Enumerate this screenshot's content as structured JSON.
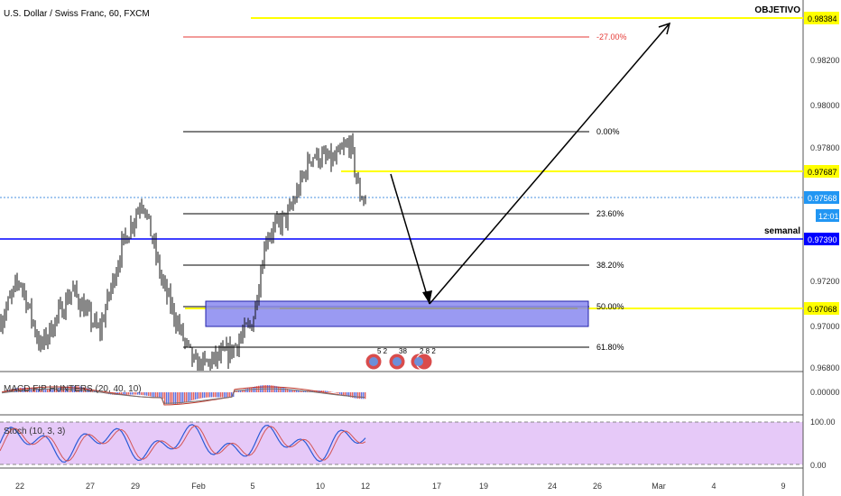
{
  "header": {
    "symbol_title": "U.S. Dollar / Swiss Franc, 60, FXCM"
  },
  "price_axis": {
    "ticks": [
      "0.98200",
      "0.98000",
      "0.97800",
      "0.97200",
      "0.97000",
      "0.96800"
    ],
    "current_price": "0.97568",
    "countdown": "12:01"
  },
  "levels": {
    "objetivo": {
      "label": "OBJETIVO",
      "price": "0.98384",
      "color": "#ffff00"
    },
    "resistance": {
      "price": "0.97687",
      "color": "#ffff00"
    },
    "semanal": {
      "label": "semanal",
      "price": "0.97390",
      "color": "#0000ff"
    },
    "target_zone": {
      "price": "0.97068",
      "color": "#ffff00"
    }
  },
  "fib_levels": [
    {
      "label": "-27.00%",
      "color": "#e53935"
    },
    {
      "label": "0.00%",
      "color": "#000000"
    },
    {
      "label": "23.60%",
      "color": "#000000"
    },
    {
      "label": "38.20%",
      "color": "#000000"
    },
    {
      "label": "50.00%",
      "color": "#000000"
    },
    {
      "label": "61.80%",
      "color": "#000000"
    }
  ],
  "events": [
    {
      "icon": "us-flag-icon",
      "count": "5 2"
    },
    {
      "icon": "us-flag-icon",
      "count": "38"
    },
    {
      "icon": "us-flag-icon",
      "count": "2 8 2"
    }
  ],
  "indicators": {
    "macd": {
      "label": "MACD FIP HUNTERS (20, 40, 10)",
      "axis": "0.00000"
    },
    "stoch": {
      "label": "Stoch (10, 3, 3)",
      "axis_top": "100.00",
      "axis_bottom": "0.00"
    }
  },
  "time_axis": {
    "labels": [
      "22",
      "27",
      "29",
      "Feb",
      "5",
      "10",
      "12",
      "17",
      "19",
      "24",
      "26",
      "Mar",
      "4",
      "9"
    ]
  },
  "chart_data": {
    "type": "line",
    "title": "U.S. Dollar / Swiss Franc, 60, FXCM",
    "xlabel": "",
    "ylabel": "",
    "ylim": [
      0.9678,
      0.9842
    ],
    "series": [
      {
        "x": [
          "22",
          "27",
          "29",
          "Feb",
          "5",
          "10",
          "12"
        ],
        "values": [
          0.969,
          0.97,
          0.9763,
          0.969,
          0.972,
          0.9783,
          0.9757
        ]
      }
    ],
    "grid": false,
    "legend": "none"
  }
}
